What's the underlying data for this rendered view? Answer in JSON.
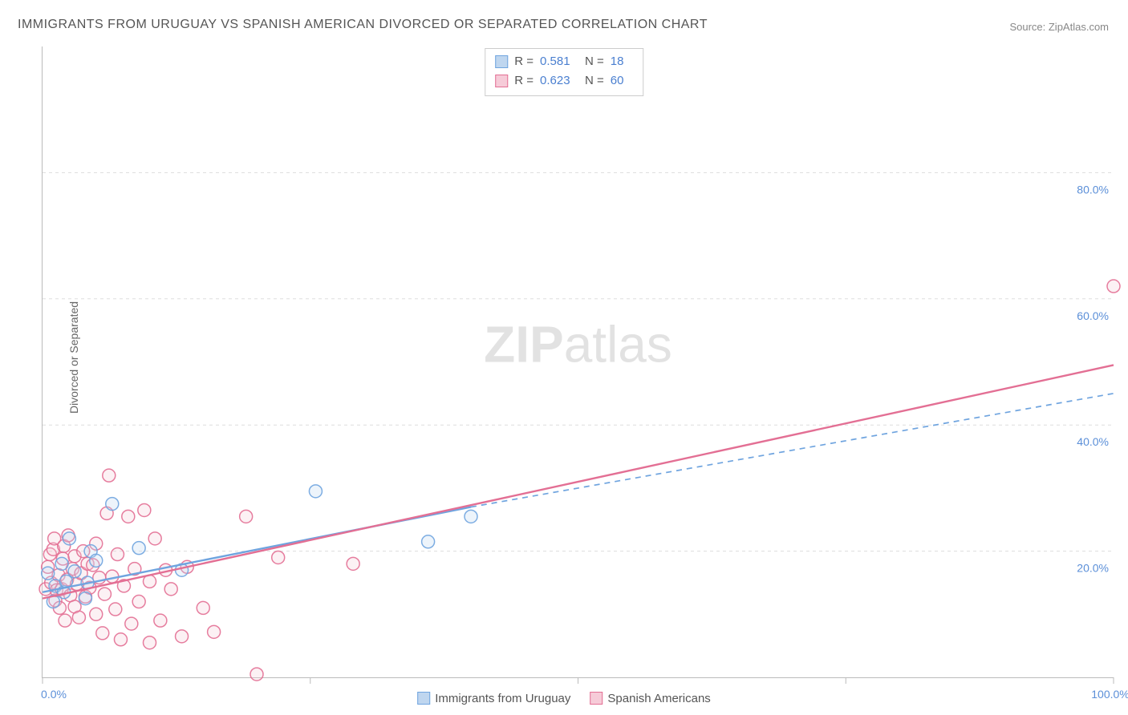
{
  "title": "IMMIGRANTS FROM URUGUAY VS SPANISH AMERICAN DIVORCED OR SEPARATED CORRELATION CHART",
  "source": "Source: ZipAtlas.com",
  "ylabel": "Divorced or Separated",
  "watermark": "ZIPatlas",
  "chart": {
    "type": "scatter",
    "xlim": [
      0,
      100
    ],
    "ylim": [
      0,
      100
    ],
    "grid_color": "#dddddd",
    "background_color": "#ffffff",
    "axis_color": "#bbbbbb",
    "label_color": "#5b8fd8",
    "label_fontsize": 14,
    "xticks": [
      0,
      25,
      50,
      75,
      100
    ],
    "yticks": [
      20,
      40,
      60,
      80
    ],
    "tick_format": "pct1",
    "marker_radius": 8,
    "series": [
      {
        "name": "Immigrants from Uruguay",
        "color": "#6fa4df",
        "fill": "#bfd6ef",
        "R": "0.581",
        "N": "18",
        "trend": {
          "x1": 0,
          "y1": 13.5,
          "x2": 40,
          "y2": 27,
          "extend_x2": 100,
          "extend_y2": 45,
          "full_solid": false
        },
        "points": [
          [
            0.5,
            16.5
          ],
          [
            1,
            12
          ],
          [
            1.2,
            14.5
          ],
          [
            1.8,
            18
          ],
          [
            2,
            13.5
          ],
          [
            2.2,
            15.2
          ],
          [
            3,
            16.8
          ],
          [
            2.5,
            22
          ],
          [
            4,
            12.5
          ],
          [
            4.2,
            15
          ],
          [
            4.5,
            20
          ],
          [
            5,
            18.5
          ],
          [
            6.5,
            27.5
          ],
          [
            9,
            20.5
          ],
          [
            13,
            17
          ],
          [
            25.5,
            29.5
          ],
          [
            36,
            21.5
          ],
          [
            40,
            25.5
          ]
        ]
      },
      {
        "name": "Spanish Americans",
        "color": "#e36f94",
        "fill": "#f6cbd8",
        "R": "0.623",
        "N": "60",
        "trend": {
          "x1": 0,
          "y1": 12.5,
          "x2": 100,
          "y2": 49.5,
          "full_solid": true
        },
        "points": [
          [
            0.3,
            14
          ],
          [
            0.5,
            17.5
          ],
          [
            0.7,
            19.5
          ],
          [
            0.8,
            15
          ],
          [
            1,
            20.3
          ],
          [
            1.1,
            22
          ],
          [
            1.2,
            12.2
          ],
          [
            1.3,
            13.8
          ],
          [
            1.5,
            16.2
          ],
          [
            1.6,
            11
          ],
          [
            1.8,
            14
          ],
          [
            1.9,
            18.8
          ],
          [
            2,
            20.8
          ],
          [
            2.1,
            9
          ],
          [
            2.3,
            15.5
          ],
          [
            2.4,
            22.5
          ],
          [
            2.6,
            13
          ],
          [
            2.8,
            17.2
          ],
          [
            3,
            11.2
          ],
          [
            3,
            19.2
          ],
          [
            3.2,
            14.8
          ],
          [
            3.4,
            9.5
          ],
          [
            3.6,
            16.5
          ],
          [
            3.8,
            20
          ],
          [
            4,
            12.8
          ],
          [
            4.2,
            18
          ],
          [
            4.4,
            14.2
          ],
          [
            4.7,
            17.8
          ],
          [
            5,
            21.2
          ],
          [
            5,
            10
          ],
          [
            5.3,
            15.8
          ],
          [
            5.6,
            7
          ],
          [
            5.8,
            13.2
          ],
          [
            6,
            26
          ],
          [
            6.2,
            32
          ],
          [
            6.5,
            16
          ],
          [
            6.8,
            10.8
          ],
          [
            7,
            19.5
          ],
          [
            7.3,
            6
          ],
          [
            7.6,
            14.5
          ],
          [
            8,
            25.5
          ],
          [
            8.3,
            8.5
          ],
          [
            8.6,
            17.2
          ],
          [
            9,
            12
          ],
          [
            9.5,
            26.5
          ],
          [
            10,
            15.2
          ],
          [
            10,
            5.5
          ],
          [
            10.5,
            22
          ],
          [
            11,
            9
          ],
          [
            11.5,
            17
          ],
          [
            12,
            14
          ],
          [
            13,
            6.5
          ],
          [
            13.5,
            17.5
          ],
          [
            15,
            11
          ],
          [
            16,
            7.2
          ],
          [
            19,
            25.5
          ],
          [
            20,
            0.5
          ],
          [
            22,
            19
          ],
          [
            29,
            18
          ],
          [
            100,
            62
          ]
        ]
      }
    ],
    "legend_top": {
      "border": "#cccccc",
      "bg": "#ffffff"
    }
  }
}
